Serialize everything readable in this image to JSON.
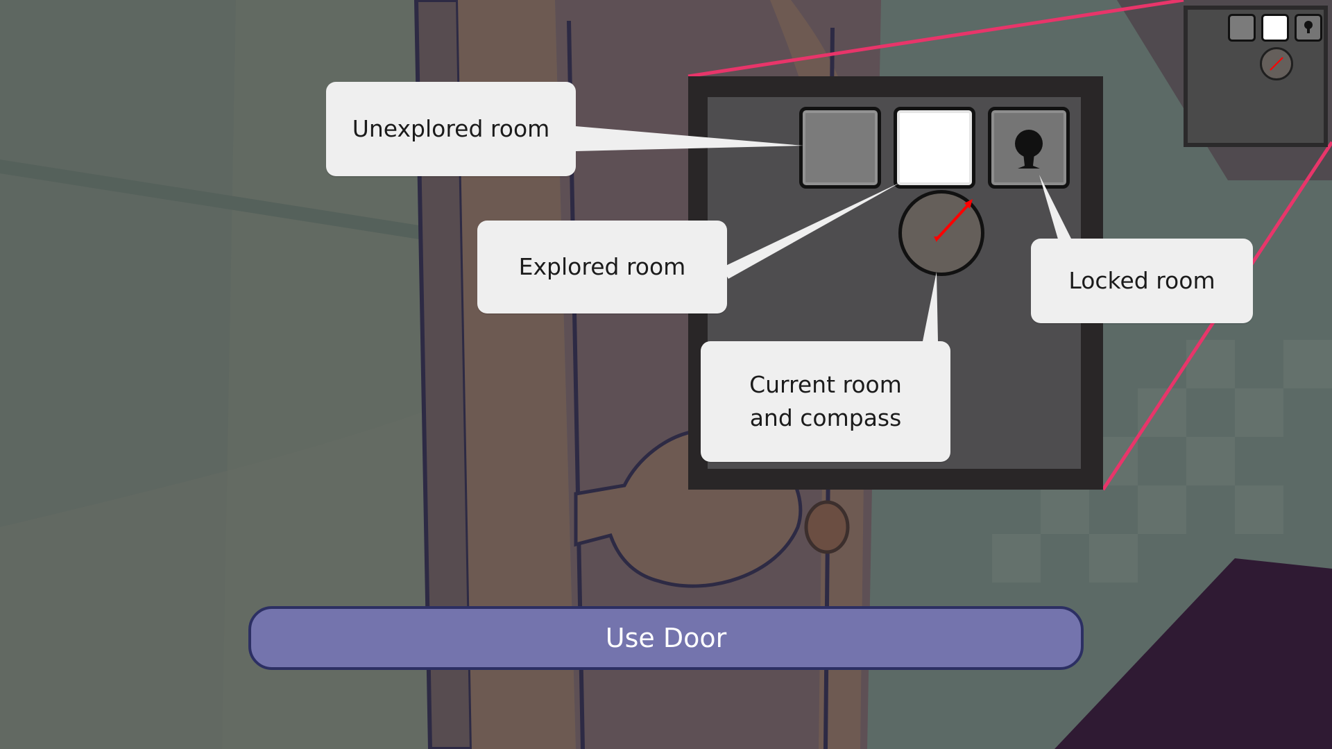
{
  "minimap": {
    "rooms": [
      "unexplored",
      "explored",
      "locked"
    ]
  },
  "legend": {
    "unexplored_label": "Unexplored room",
    "explored_label": "Explored room",
    "locked_label": "Locked room",
    "current_line1": "Current room",
    "current_line2": "and compass"
  },
  "actions": {
    "use_door_label": "Use Door"
  },
  "colors": {
    "accent_line": "#e8356a",
    "button_fill": "#7474ad",
    "button_border": "#2c2f63",
    "compass_needle": "#ff0000"
  }
}
